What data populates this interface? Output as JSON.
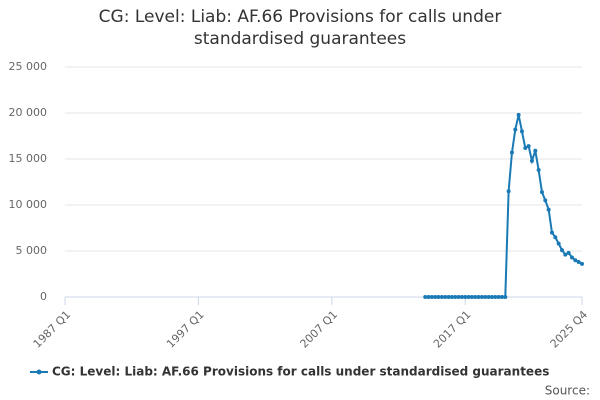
{
  "chart_data": {
    "type": "line",
    "title": "CG: Level: Liab: AF.66 Provisions for calls under standardised guarantees",
    "x": [
      "2014 Q1",
      "2014 Q2",
      "2014 Q3",
      "2014 Q4",
      "2015 Q1",
      "2015 Q2",
      "2015 Q3",
      "2015 Q4",
      "2016 Q1",
      "2016 Q2",
      "2016 Q3",
      "2016 Q4",
      "2017 Q1",
      "2017 Q2",
      "2017 Q3",
      "2017 Q4",
      "2018 Q1",
      "2018 Q2",
      "2018 Q3",
      "2018 Q4",
      "2019 Q1",
      "2019 Q2",
      "2019 Q3",
      "2019 Q4",
      "2020 Q1",
      "2020 Q2",
      "2020 Q3",
      "2020 Q4",
      "2021 Q1",
      "2021 Q2",
      "2021 Q3",
      "2021 Q4",
      "2022 Q1",
      "2022 Q2",
      "2022 Q3",
      "2022 Q4",
      "2023 Q1",
      "2023 Q2",
      "2023 Q3",
      "2023 Q4",
      "2024 Q1",
      "2024 Q2",
      "2024 Q3",
      "2024 Q4",
      "2025 Q1",
      "2025 Q2",
      "2025 Q3",
      "2025 Q4"
    ],
    "series": [
      {
        "name": "CG: Level: Liab: AF.66 Provisions for calls under standardised guarantees",
        "color": "#1a7ab5",
        "values": [
          0,
          0,
          0,
          0,
          0,
          0,
          0,
          0,
          0,
          0,
          0,
          0,
          0,
          0,
          0,
          0,
          0,
          0,
          0,
          0,
          0,
          0,
          0,
          0,
          0,
          11500,
          15700,
          18200,
          19800,
          18000,
          16200,
          16400,
          14800,
          15900,
          13800,
          11400,
          10500,
          9500,
          7000,
          6500,
          5800,
          5100,
          4600,
          4800,
          4300,
          4000,
          3800,
          3600
        ]
      }
    ],
    "xlim": [
      "1987 Q1",
      "2025 Q4"
    ],
    "xticks": [
      "1987 Q1",
      "1997 Q1",
      "2007 Q1",
      "2017 Q1",
      "2025 Q4"
    ],
    "ylim": [
      0,
      25000
    ],
    "yticks": [
      0,
      {
        "value": 5000,
        "label": "5 000"
      },
      {
        "value": 10000,
        "label": "10 000"
      },
      {
        "value": 15000,
        "label": "15 000"
      },
      {
        "value": 20000,
        "label": "20 000"
      },
      {
        "value": 25000,
        "label": "25 000"
      }
    ],
    "grid": true,
    "source": "Source:"
  }
}
